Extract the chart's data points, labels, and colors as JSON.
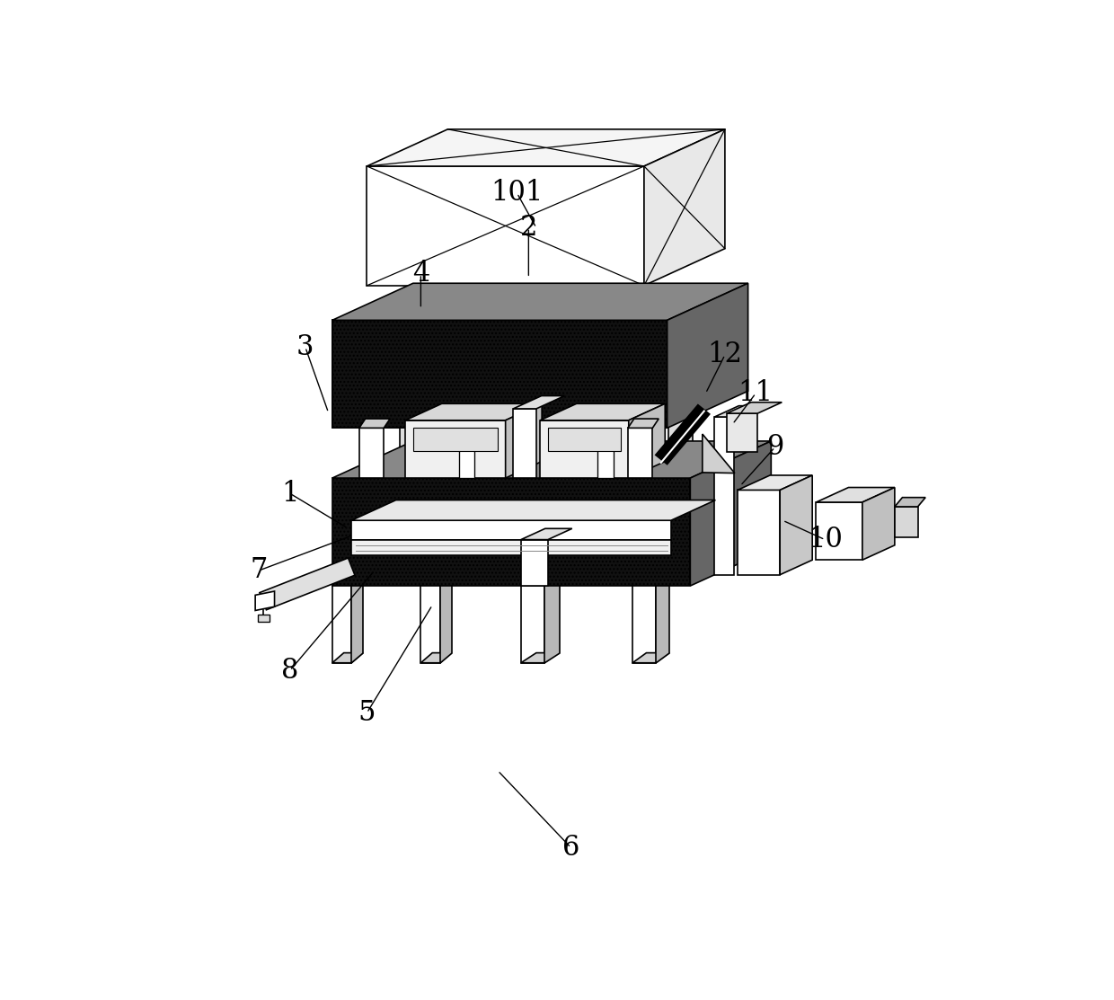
{
  "bg_color": "#ffffff",
  "lc": "#000000",
  "lw": 1.2,
  "figsize": [
    12.4,
    11.13
  ],
  "dpi": 100,
  "annotations": [
    {
      "label": "6",
      "lpos": [
        0.5,
        0.055
      ],
      "atip": [
        0.405,
        0.155
      ]
    },
    {
      "label": "5",
      "lpos": [
        0.235,
        0.23
      ],
      "atip": [
        0.32,
        0.37
      ]
    },
    {
      "label": "8",
      "lpos": [
        0.135,
        0.285
      ],
      "atip": [
        0.245,
        0.415
      ]
    },
    {
      "label": "7",
      "lpos": [
        0.095,
        0.415
      ],
      "atip": [
        0.215,
        0.46
      ]
    },
    {
      "label": "1",
      "lpos": [
        0.135,
        0.515
      ],
      "atip": [
        0.21,
        0.47
      ]
    },
    {
      "label": "3",
      "lpos": [
        0.155,
        0.705
      ],
      "atip": [
        0.185,
        0.62
      ]
    },
    {
      "label": "4",
      "lpos": [
        0.305,
        0.8
      ],
      "atip": [
        0.305,
        0.755
      ]
    },
    {
      "label": "2",
      "lpos": [
        0.445,
        0.86
      ],
      "atip": [
        0.445,
        0.795
      ]
    },
    {
      "label": "101",
      "lpos": [
        0.43,
        0.905
      ],
      "atip": [
        0.455,
        0.86
      ]
    },
    {
      "label": "9",
      "lpos": [
        0.765,
        0.575
      ],
      "atip": [
        0.72,
        0.525
      ]
    },
    {
      "label": "10",
      "lpos": [
        0.83,
        0.455
      ],
      "atip": [
        0.775,
        0.48
      ]
    },
    {
      "label": "11",
      "lpos": [
        0.74,
        0.645
      ],
      "atip": [
        0.71,
        0.605
      ]
    },
    {
      "label": "12",
      "lpos": [
        0.7,
        0.695
      ],
      "atip": [
        0.675,
        0.645
      ]
    }
  ]
}
